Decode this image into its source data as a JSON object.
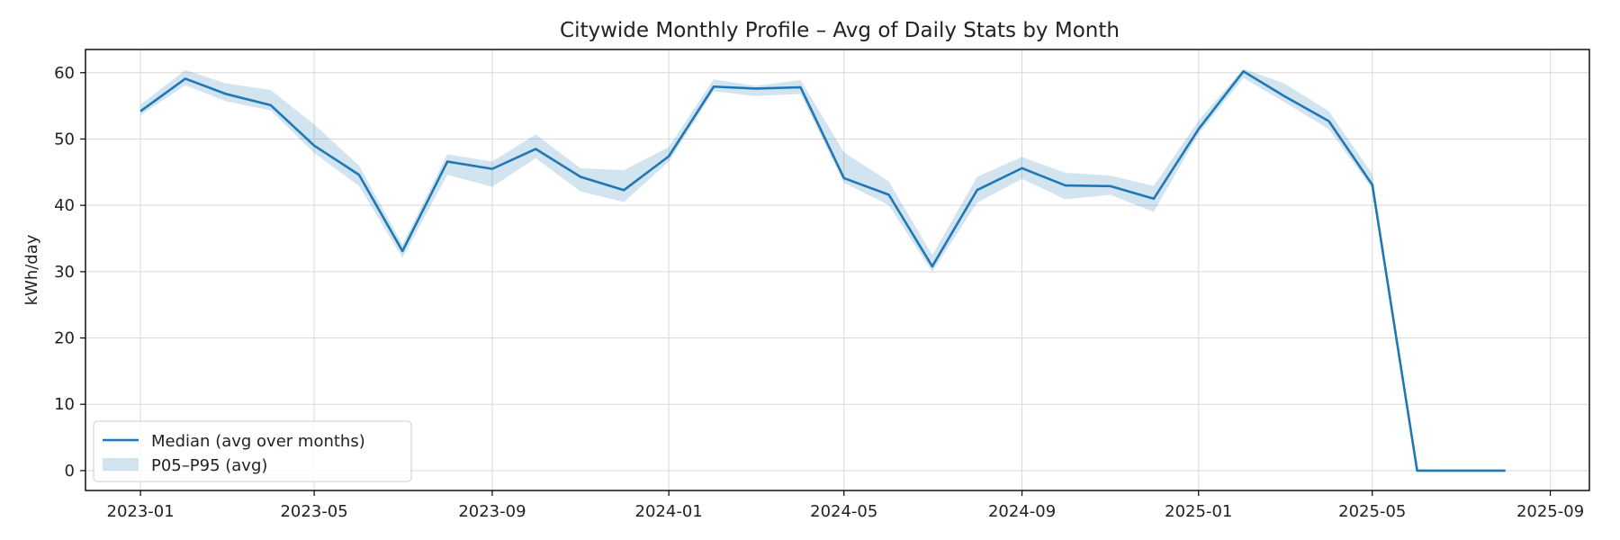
{
  "chart_data": {
    "type": "line",
    "title": "Citywide Monthly Profile – Avg of Daily Stats by Month",
    "xlabel": "",
    "ylabel": "kWh/day",
    "x": [
      "2023-01",
      "2023-02",
      "2023-03",
      "2023-04",
      "2023-05",
      "2023-06",
      "2023-07",
      "2023-08",
      "2023-09",
      "2023-10",
      "2023-11",
      "2023-12",
      "2024-01",
      "2024-02",
      "2024-03",
      "2024-04",
      "2024-05",
      "2024-06",
      "2024-07",
      "2024-08",
      "2024-09",
      "2024-10",
      "2024-11",
      "2024-12",
      "2025-01",
      "2025-02",
      "2025-03",
      "2025-04",
      "2025-05",
      "2025-06",
      "2025-07",
      "2025-08"
    ],
    "series": [
      {
        "name": "Median (avg over months)",
        "type": "line",
        "color": "#1f77b4",
        "values": [
          54.2,
          59.1,
          56.8,
          55.1,
          49.0,
          44.6,
          33.1,
          46.6,
          45.5,
          48.5,
          44.3,
          42.3,
          47.4,
          57.9,
          57.6,
          57.8,
          44.1,
          41.6,
          30.8,
          42.3,
          45.6,
          43.0,
          42.9,
          41.0,
          51.5,
          60.2,
          56.5,
          52.7,
          43.1,
          0.0,
          0.0,
          0.0
        ]
      },
      {
        "name": "P05–P95 (avg)",
        "type": "band",
        "color": "#1f77b4",
        "opacity": 0.2,
        "lower": [
          53.6,
          58.1,
          55.7,
          54.3,
          47.9,
          42.9,
          32.1,
          44.6,
          42.8,
          47.1,
          42.1,
          40.5,
          46.6,
          57.2,
          56.5,
          56.8,
          43.4,
          40.0,
          30.0,
          40.4,
          44.0,
          40.9,
          41.6,
          39.0,
          50.8,
          59.2,
          55.6,
          51.5,
          42.5,
          0.0,
          0.0,
          0.0
        ],
        "upper": [
          55.2,
          60.4,
          58.4,
          57.4,
          52.2,
          46.0,
          34.1,
          47.7,
          46.6,
          50.7,
          45.6,
          45.3,
          48.8,
          59.0,
          58.0,
          58.9,
          48.0,
          43.6,
          32.5,
          44.3,
          47.3,
          44.9,
          44.5,
          42.9,
          52.8,
          60.6,
          58.4,
          54.2,
          44.7,
          0.0,
          0.0,
          0.0
        ]
      }
    ],
    "x_ticks": [
      "2023-01",
      "2023-05",
      "2023-09",
      "2024-01",
      "2024-05",
      "2024-09",
      "2025-01",
      "2025-05",
      "2025-09"
    ],
    "y_ticks": [
      0,
      10,
      20,
      30,
      40,
      50,
      60
    ],
    "xlim": [
      "2022-11-24",
      "2025-09-28"
    ],
    "ylim": [
      -3.0,
      63.5
    ],
    "grid": true,
    "legend": {
      "placement": "lower-left",
      "entries": [
        "Median (avg over months)",
        "P05–P95 (avg)"
      ]
    }
  }
}
